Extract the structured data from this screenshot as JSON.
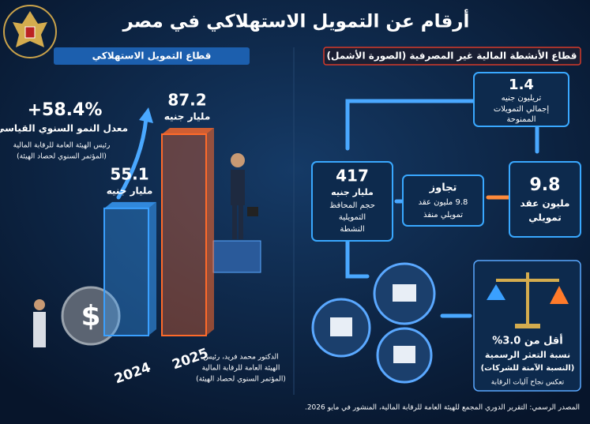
{
  "header": {
    "title": "أرقام عن التمويل الاستهلاكي في مصر"
  },
  "left_panel": {
    "heading": "قطاع التمويل الاستهلاكي",
    "growth": {
      "value": "+58.4%",
      "label": "معدل النمو السنوي القياسي",
      "notes": [
        "رئيس الهيئة العامة للرقابة المالية",
        "(المؤتمر السنوي لحصاد الهيئة)"
      ]
    },
    "bars": [
      {
        "year": "2024",
        "value": 55.1,
        "unit": "مليار جنيه",
        "color": "#3aa0ff"
      },
      {
        "year": "2025",
        "value": 87.2,
        "unit": "مليار جنيه",
        "color": "#ff6a2a"
      }
    ],
    "caption": [
      "الدكتور محمد فريد، رئيس",
      "الهيئة العامة للرقابة المالية",
      "(المؤتمر السنوي لحصاد الهيئة)"
    ]
  },
  "right_panel": {
    "heading": "قطاع الأنشطة المالية غير المصرفية (الصورة الأشمل)",
    "boxes": [
      {
        "value": "1.4",
        "lines": [
          "تريليون جنيه",
          "إجمالي التمويلات",
          "الممنوحة"
        ]
      },
      {
        "value": "9.8",
        "lines": [
          "مليون عقد",
          "تمويلي"
        ]
      },
      {
        "value": "تجاوز",
        "lines": [
          "9.8 مليون عقد",
          "تمويلي منفذ"
        ]
      },
      {
        "value": "417",
        "lines": [
          "مليار جنيه",
          "حجم المحافظ",
          "التمويلية",
          "النشطة"
        ]
      }
    ],
    "risk": {
      "value": "أقل من 3.0%",
      "lines": [
        "نسبة التعثر الرسمية",
        "(النسبة الآمنة للشركات)",
        "تعكس نجاح آليات الرقابة"
      ]
    }
  },
  "footer": {
    "source": "المصدر الرسمي: التقرير الدوري المجمع للهيئة العامة للرقابة المالية، المنشور في مايو 2026."
  }
}
